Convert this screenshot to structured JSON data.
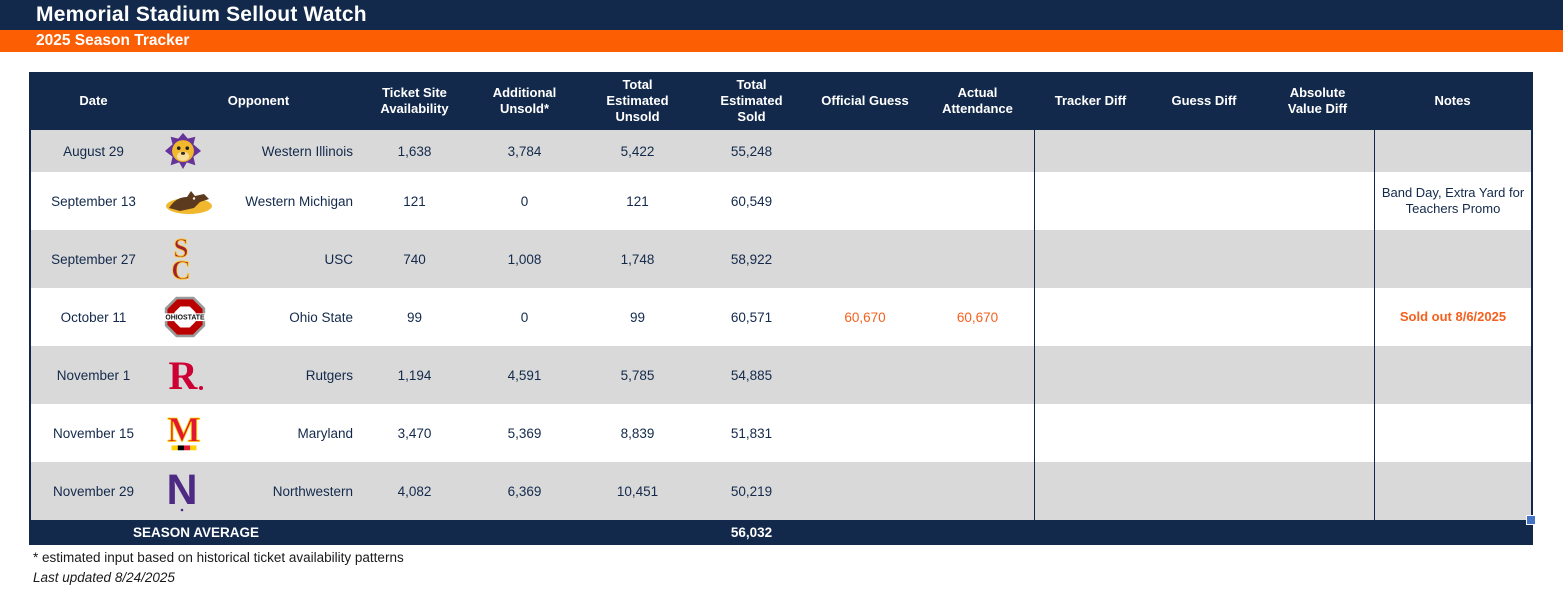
{
  "app": {
    "title": "Memorial Stadium Sellout Watch",
    "subtitle": "2025 Season Tracker"
  },
  "colors": {
    "navy": "#13294B",
    "banner_orange": "#FB5E03",
    "highlight_orange": "#F4601E",
    "row_gray": "#D9D9D9",
    "fill_handle_blue": "#4472C4"
  },
  "table": {
    "columns": [
      "Date",
      "Opponent",
      "Ticket Site Availability",
      "Additional Unsold*",
      "Total Estimated Unsold",
      "Total Estimated Sold",
      "Official Guess",
      "Actual Attendance",
      "Tracker Diff",
      "Guess Diff",
      "Absolute Value Diff",
      "Notes"
    ],
    "rows": [
      {
        "date": "August 29",
        "opponent": "Western Illinois",
        "logo": "western-illinois",
        "ticket_site_availability": "1,638",
        "additional_unsold": "3,784",
        "total_estimated_unsold": "5,422",
        "total_estimated_sold": "55,248",
        "official_guess": "",
        "actual_attendance": "",
        "tracker_diff": "",
        "guess_diff": "",
        "absolute_value_diff": "",
        "notes": "",
        "highlight": false
      },
      {
        "date": "September 13",
        "opponent": "Western Michigan",
        "logo": "western-michigan",
        "ticket_site_availability": "121",
        "additional_unsold": "0",
        "total_estimated_unsold": "121",
        "total_estimated_sold": "60,549",
        "official_guess": "",
        "actual_attendance": "",
        "tracker_diff": "",
        "guess_diff": "",
        "absolute_value_diff": "",
        "notes": "Band Day, Extra Yard for Teachers Promo",
        "highlight": false
      },
      {
        "date": "September 27",
        "opponent": "USC",
        "logo": "usc",
        "ticket_site_availability": "740",
        "additional_unsold": "1,008",
        "total_estimated_unsold": "1,748",
        "total_estimated_sold": "58,922",
        "official_guess": "",
        "actual_attendance": "",
        "tracker_diff": "",
        "guess_diff": "",
        "absolute_value_diff": "",
        "notes": "",
        "highlight": false
      },
      {
        "date": "October 11",
        "opponent": "Ohio State",
        "logo": "ohio-state",
        "ticket_site_availability": "99",
        "additional_unsold": "0",
        "total_estimated_unsold": "99",
        "total_estimated_sold": "60,571",
        "official_guess": "60,670",
        "actual_attendance": "60,670",
        "tracker_diff": "",
        "guess_diff": "",
        "absolute_value_diff": "",
        "notes": "Sold out 8/6/2025",
        "highlight": true
      },
      {
        "date": "November 1",
        "opponent": "Rutgers",
        "logo": "rutgers",
        "ticket_site_availability": "1,194",
        "additional_unsold": "4,591",
        "total_estimated_unsold": "5,785",
        "total_estimated_sold": "54,885",
        "official_guess": "",
        "actual_attendance": "",
        "tracker_diff": "",
        "guess_diff": "",
        "absolute_value_diff": "",
        "notes": "",
        "highlight": false
      },
      {
        "date": "November 15",
        "opponent": "Maryland",
        "logo": "maryland",
        "ticket_site_availability": "3,470",
        "additional_unsold": "5,369",
        "total_estimated_unsold": "8,839",
        "total_estimated_sold": "51,831",
        "official_guess": "",
        "actual_attendance": "",
        "tracker_diff": "",
        "guess_diff": "",
        "absolute_value_diff": "",
        "notes": "",
        "highlight": false
      },
      {
        "date": "November 29",
        "opponent": "Northwestern",
        "logo": "northwestern",
        "ticket_site_availability": "4,082",
        "additional_unsold": "6,369",
        "total_estimated_unsold": "10,451",
        "total_estimated_sold": "50,219",
        "official_guess": "",
        "actual_attendance": "",
        "tracker_diff": "",
        "guess_diff": "",
        "absolute_value_diff": "",
        "notes": "",
        "highlight": false
      }
    ],
    "footer": {
      "label": "SEASON AVERAGE",
      "season_average_sold": "56,032"
    }
  },
  "footnotes": {
    "asterisk": "* estimated input based on historical ticket availability patterns",
    "last_updated": "Last updated 8/24/2025"
  }
}
